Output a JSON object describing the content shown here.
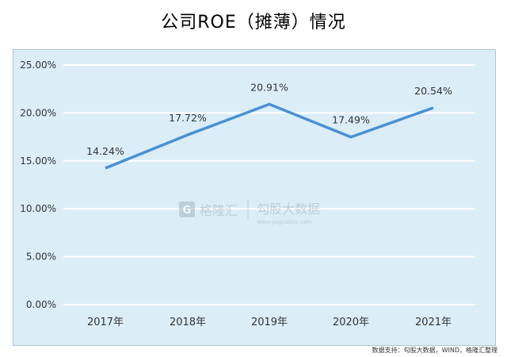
{
  "title": "公司ROE（摊薄）情况",
  "watermark": {
    "brand1": "格隆汇",
    "brand2": "勾股大数据",
    "url": "www.gogudata.com"
  },
  "footer": {
    "source": "数据支持：勾股大数据，WIND，格隆汇整理"
  },
  "colors": {
    "line": "#4a90d4",
    "plot_bg": "#dbeef7",
    "grid": "#ffffff"
  },
  "chart_data": {
    "type": "line",
    "title": "公司ROE（摊薄）情况",
    "categories": [
      "2017年",
      "2018年",
      "2019年",
      "2020年",
      "2021年"
    ],
    "series": [
      {
        "values": [
          14.24,
          17.72,
          20.91,
          17.49,
          20.54
        ],
        "labels": [
          "14.24%",
          "17.72%",
          "20.91%",
          "17.49%",
          "20.54%"
        ]
      }
    ],
    "yticks": [
      "0.00%",
      "5.00%",
      "10.00%",
      "15.00%",
      "20.00%",
      "25.00%"
    ],
    "ylim": [
      0,
      25
    ],
    "grid": true,
    "legend": "none"
  }
}
